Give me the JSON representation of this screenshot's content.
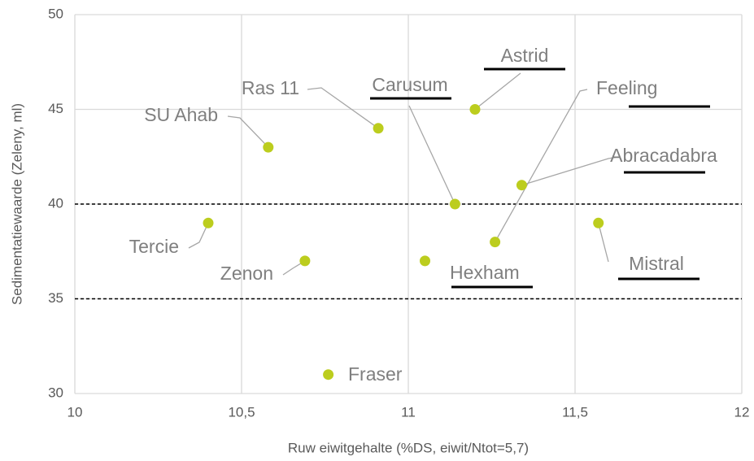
{
  "chart_data": {
    "type": "scatter",
    "x_label": "Ruw eiwitgehalte (%DS, eiwit/Ntot=5,7)",
    "y_label": "Sedimentatiewaarde (Zeleny, ml)",
    "labels": [
      "Tercie",
      "SU Ahab",
      "Zenon",
      "Fraser",
      "Ras 11",
      "Hexham",
      "Carusum",
      "Astrid",
      "Feeling",
      "Abracadabra",
      "Mistral"
    ],
    "x": [
      10.4,
      10.58,
      10.69,
      10.76,
      10.91,
      11.05,
      11.14,
      11.2,
      11.26,
      11.34,
      11.57
    ],
    "values": [
      39,
      43,
      37,
      31,
      44,
      37,
      40,
      45,
      38,
      41,
      39
    ],
    "underlined": [
      false,
      false,
      false,
      false,
      false,
      true,
      true,
      true,
      true,
      true,
      true
    ],
    "color": "#bccd1e",
    "xlim": [
      10,
      12
    ],
    "xticks": [
      10,
      {
        "value": 10.5,
        "label": "10,5"
      },
      11,
      {
        "value": 11.5,
        "label": "11,5"
      },
      12
    ],
    "ylim": [
      30,
      50
    ],
    "yticks": [
      30,
      35,
      40,
      45,
      50
    ],
    "reference_lines": [
      35,
      40
    ],
    "grid": true
  }
}
